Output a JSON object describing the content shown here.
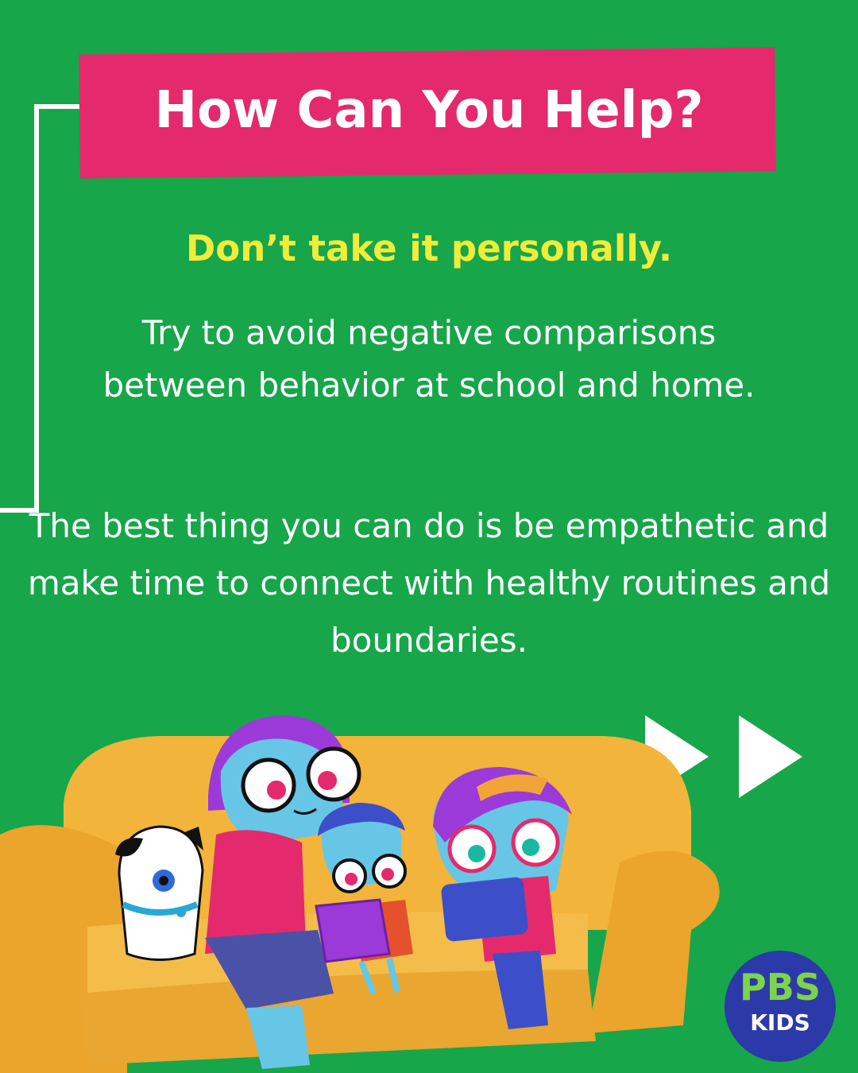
{
  "heading": "How Can You Help?",
  "subheading": "Don’t take it personally.",
  "paragraph1": "Try to avoid negative comparisons between behavior at school and home.",
  "paragraph2": "The best thing you can do is be empathetic and make time to connect with healthy routines and boundaries.",
  "logo": {
    "line1": "PBS",
    "line2": "KIDS"
  },
  "icons": [
    "next-arrows-icon"
  ],
  "colors": {
    "background": "#17a64a",
    "title_box": "#e42a6c",
    "subheading": "#f0ec3c",
    "logo": "#2b3aa8"
  }
}
